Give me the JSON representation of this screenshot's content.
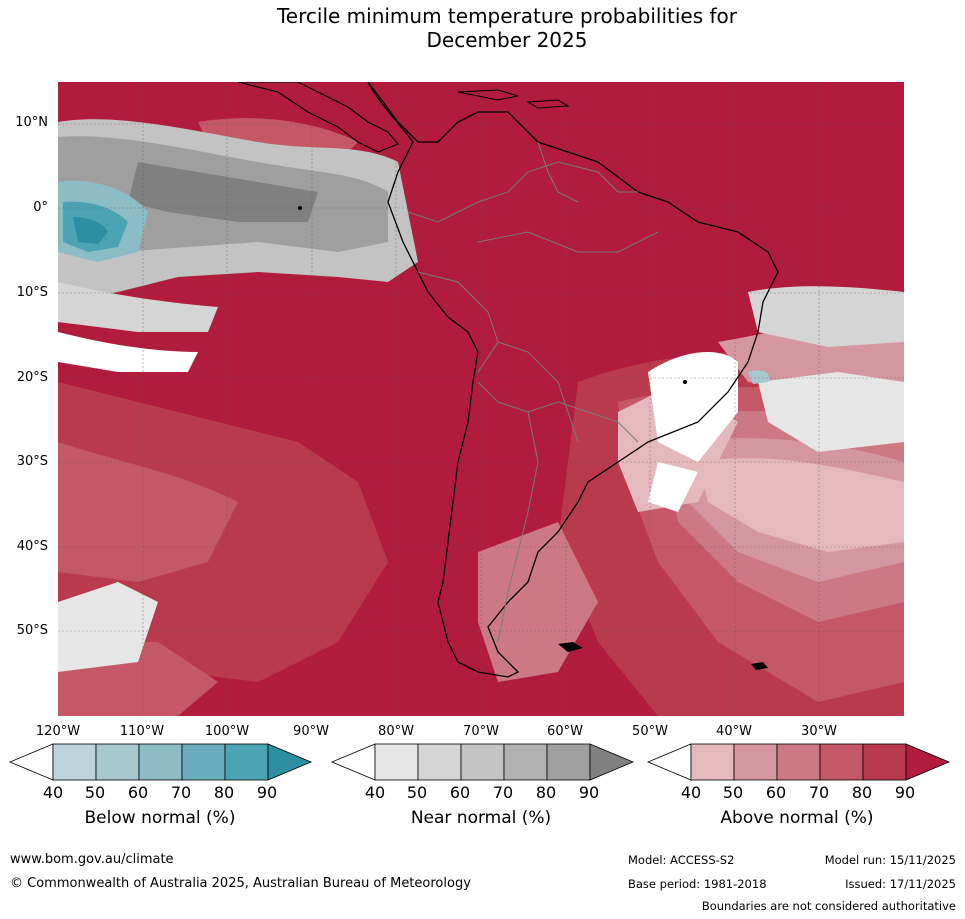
{
  "title": {
    "line1": "Tercile minimum temperature probabilities for",
    "line2": "December 2025"
  },
  "map": {
    "lat_labels": [
      "10°N",
      "0°",
      "10°S",
      "20°S",
      "30°S",
      "40°S",
      "50°S"
    ],
    "lon_labels": [
      "120°W",
      "110°W",
      "100°W",
      "90°W",
      "80°W",
      "70°W",
      "60°W",
      "50°W",
      "40°W",
      "30°W"
    ],
    "extent": {
      "lon": [
        -120,
        -20
      ],
      "lat": [
        -60,
        15
      ]
    }
  },
  "legends": [
    {
      "title": "Below normal (%)",
      "values": [
        "40",
        "50",
        "60",
        "70",
        "80",
        "90"
      ],
      "colors": [
        "#ffffff",
        "#bcd3da",
        "#a7c8cf",
        "#8cbcc6",
        "#6aadbc",
        "#4ba3b4",
        "#2d8fa2"
      ]
    },
    {
      "title": "Near normal (%)",
      "values": [
        "40",
        "50",
        "60",
        "70",
        "80",
        "90"
      ],
      "colors": [
        "#ffffff",
        "#e6e6e6",
        "#d5d5d5",
        "#c3c3c3",
        "#b1b1b1",
        "#9f9f9f",
        "#808080"
      ]
    },
    {
      "title": "Above normal (%)",
      "values": [
        "40",
        "50",
        "60",
        "70",
        "80",
        "90"
      ],
      "colors": [
        "#ffffff",
        "#e4b8bd",
        "#d5979f",
        "#cc7983",
        "#c45866",
        "#b93a4c",
        "#b21c3c"
      ]
    }
  ],
  "footer": {
    "website": "www.bom.gov.au/climate",
    "copyright": "© Commonwealth of Australia 2025, Australian Bureau of Meteorology",
    "model": "Model: ACCESS-S2",
    "base_period": "Base period: 1981-2018",
    "model_run": "Model run: 15/11/2025",
    "issued": "Issued: 17/11/2025",
    "disclaimer": "Boundaries are not considered authoritative"
  }
}
